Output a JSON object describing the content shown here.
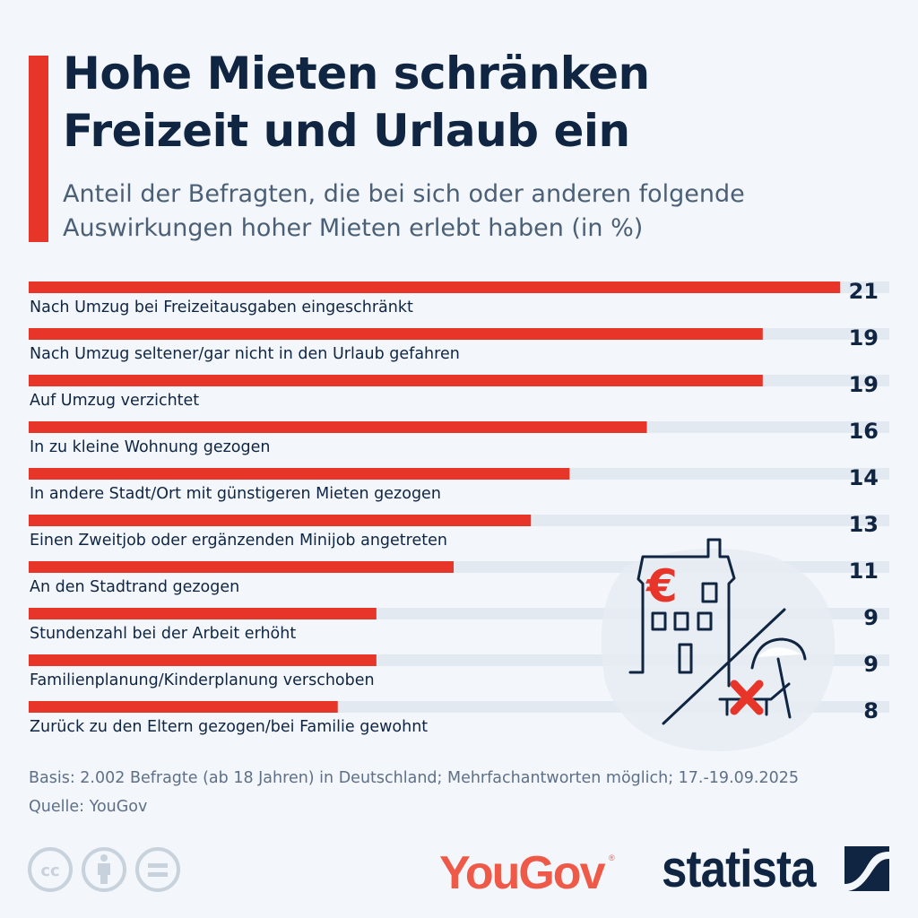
{
  "header": {
    "title_line1": "Hohe Mieten schränken",
    "title_line2": "Freizeit und Urlaub ein",
    "subtitle_line1": "Anteil der Befragten, die bei sich oder anderen folgende",
    "subtitle_line2": "Auswirkungen hoher Mieten erlebt haben (in %)"
  },
  "colors": {
    "accent": "#e8352a",
    "bar": "#e8352a",
    "track": "#e3e9f1",
    "text_dark": "#0f2542",
    "text_muted": "#5e7088",
    "background": "#f3f6fa",
    "yougov": "#ef5a48"
  },
  "chart_data": {
    "type": "bar",
    "orientation": "horizontal",
    "title": "Hohe Mieten schränken Freizeit und Urlaub ein",
    "subtitle": "Anteil der Befragten, die bei sich oder anderen folgende Auswirkungen hoher Mieten erlebt haben (in %)",
    "xlabel": "",
    "ylabel": "",
    "unit": "%",
    "xlim": [
      0,
      21
    ],
    "grid": false,
    "legend": "none",
    "categories": [
      "Nach Umzug bei Freizeitausgaben eingeschränkt",
      "Nach Umzug seltener/gar nicht in den Urlaub gefahren",
      "Auf Umzug verzichtet",
      "In zu kleine Wohnung gezogen",
      "In andere Stadt/Ort mit günstigeren Mieten gezogen",
      "Einen Zweitjob oder ergänzenden Minijob angetreten",
      "An den Stadtrand gezogen",
      "Stundenzahl bei der Arbeit erhöht",
      "Familienplanung/Kinderplanung verschoben",
      "Zurück zu den Eltern gezogen/bei Familie gewohnt"
    ],
    "values": [
      21,
      19,
      19,
      16,
      14,
      13,
      11,
      9,
      9,
      8
    ],
    "value_labels": [
      "21",
      "19",
      "19",
      "16",
      "14",
      "13",
      "11",
      "9",
      "9",
      "8"
    ]
  },
  "illustration": {
    "name": "house-with-euro-and-crossed-vacation",
    "currency_symbol": "€"
  },
  "footer": {
    "basis": "Basis: 2.002 Befragte (ab 18 Jahren) in Deutschland; Mehrfachantworten möglich; 17.-19.09.2025",
    "source": "Quelle: YouGov",
    "cc_label": "cc",
    "yougov_logo": "YouGov",
    "yougov_reg": "®",
    "statista_logo": "statista"
  }
}
